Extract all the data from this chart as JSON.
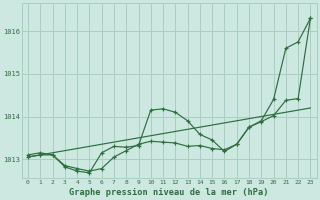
{
  "bg_color": "#cce8e0",
  "grid_color": "#a8cfc0",
  "line_color": "#2d6e3e",
  "xlabel": "Graphe pression niveau de la mer (hPa)",
  "xlabel_color": "#2d6e3e",
  "ylabel_ticks": [
    1013,
    1014,
    1015,
    1016
  ],
  "xlim": [
    -0.5,
    23.5
  ],
  "ylim": [
    1012.55,
    1016.65
  ],
  "xticks": [
    0,
    1,
    2,
    3,
    4,
    5,
    6,
    7,
    8,
    9,
    10,
    11,
    12,
    13,
    14,
    15,
    16,
    17,
    18,
    19,
    20,
    21,
    22,
    23
  ],
  "line1_x": [
    0,
    1,
    2,
    3,
    4,
    5,
    6,
    7,
    8,
    9,
    10,
    11,
    12,
    13,
    14,
    15,
    16,
    17,
    18,
    19,
    20,
    21,
    22,
    23
  ],
  "line1_y": [
    1013.05,
    1013.1,
    1013.15,
    1013.2,
    1013.25,
    1013.3,
    1013.35,
    1013.4,
    1013.45,
    1013.5,
    1013.55,
    1013.6,
    1013.65,
    1013.7,
    1013.75,
    1013.8,
    1013.85,
    1013.9,
    1013.95,
    1014.0,
    1014.05,
    1014.1,
    1014.15,
    1014.2
  ],
  "line2_x": [
    0,
    1,
    2,
    3,
    4,
    5,
    6,
    7,
    8,
    9,
    10,
    11,
    12,
    13,
    14,
    15,
    16,
    17,
    18,
    19,
    20,
    21,
    22,
    23
  ],
  "line2_y": [
    1013.1,
    1013.15,
    1013.1,
    1012.85,
    1012.78,
    1012.72,
    1012.78,
    1013.05,
    1013.2,
    1013.35,
    1013.42,
    1013.4,
    1013.38,
    1013.3,
    1013.32,
    1013.25,
    1013.22,
    1013.35,
    1013.75,
    1013.9,
    1014.4,
    1015.6,
    1015.75,
    1016.3
  ],
  "line3_x": [
    0,
    1,
    2,
    3,
    4,
    5,
    6,
    7,
    8,
    9,
    10,
    11,
    12,
    13,
    14,
    15,
    16,
    17,
    18,
    19,
    20,
    21,
    22,
    23
  ],
  "line3_y": [
    1013.05,
    1013.1,
    1013.1,
    1012.82,
    1012.72,
    1012.68,
    1013.15,
    1013.3,
    1013.28,
    1013.32,
    1014.15,
    1014.18,
    1014.1,
    1013.9,
    1013.58,
    1013.45,
    1013.18,
    1013.35,
    1013.75,
    1013.88,
    1014.02,
    1014.38,
    1014.42,
    1016.3
  ]
}
